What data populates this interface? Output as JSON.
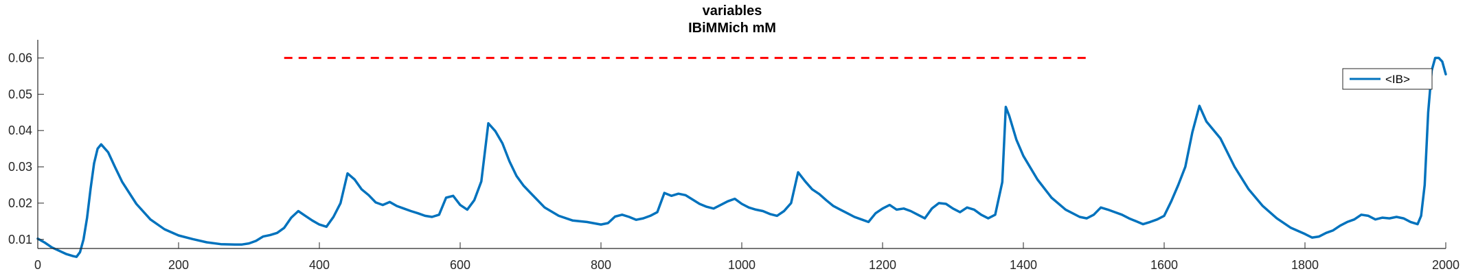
{
  "chart_data": {
    "type": "line",
    "title": "variables",
    "subtitle": "IBiMMich mM",
    "xlabel": "",
    "ylabel": "",
    "xlim": [
      0,
      2000
    ],
    "ylim": [
      0.0075,
      0.065
    ],
    "x_ticks": [
      0,
      200,
      400,
      600,
      800,
      1000,
      1200,
      1400,
      1600,
      1800,
      2000
    ],
    "y_ticks": [
      0.01,
      0.02,
      0.03,
      0.04,
      0.05,
      0.06
    ],
    "x_tick_labels": [
      "0",
      "200",
      "400",
      "600",
      "800",
      "1000",
      "1200",
      "1400",
      "1600",
      "1800",
      "2000"
    ],
    "y_tick_labels": [
      "0.01",
      "0.02",
      "0.03",
      "0.04",
      "0.05",
      "0.06"
    ],
    "grid": false,
    "legend_position": "top-right",
    "colors": {
      "series": "#0072BD",
      "reference": "#FF0000",
      "axis": "#262626"
    },
    "reference_line": {
      "y": 0.06,
      "x_start": 350,
      "x_end": 1490,
      "style": "dashed"
    },
    "series": [
      {
        "name": "<IB>",
        "x": [
          0,
          10,
          20,
          30,
          40,
          50,
          55,
          60,
          65,
          70,
          75,
          80,
          85,
          90,
          100,
          110,
          120,
          140,
          160,
          180,
          200,
          220,
          240,
          260,
          280,
          290,
          300,
          310,
          320,
          330,
          340,
          350,
          360,
          370,
          380,
          390,
          400,
          410,
          420,
          430,
          440,
          450,
          460,
          470,
          480,
          490,
          500,
          510,
          520,
          530,
          540,
          550,
          560,
          570,
          580,
          590,
          600,
          610,
          620,
          630,
          640,
          650,
          660,
          670,
          680,
          690,
          700,
          720,
          740,
          760,
          780,
          800,
          810,
          820,
          830,
          840,
          850,
          860,
          870,
          880,
          890,
          900,
          910,
          920,
          930,
          940,
          950,
          960,
          970,
          980,
          990,
          1000,
          1010,
          1020,
          1030,
          1040,
          1050,
          1060,
          1070,
          1080,
          1090,
          1100,
          1110,
          1120,
          1130,
          1140,
          1150,
          1160,
          1170,
          1180,
          1190,
          1200,
          1210,
          1220,
          1230,
          1240,
          1250,
          1260,
          1270,
          1280,
          1290,
          1300,
          1310,
          1320,
          1330,
          1340,
          1350,
          1360,
          1370,
          1375,
          1380,
          1390,
          1400,
          1420,
          1440,
          1460,
          1480,
          1490,
          1500,
          1510,
          1520,
          1530,
          1540,
          1550,
          1560,
          1570,
          1580,
          1590,
          1600,
          1610,
          1620,
          1630,
          1640,
          1650,
          1660,
          1680,
          1700,
          1720,
          1740,
          1760,
          1780,
          1800,
          1810,
          1820,
          1830,
          1840,
          1850,
          1860,
          1870,
          1880,
          1890,
          1900,
          1910,
          1920,
          1930,
          1940,
          1950,
          1960,
          1965,
          1970,
          1975,
          1980,
          1985,
          1990,
          1995,
          2000
        ],
        "values": [
          0.0102,
          0.0091,
          0.0078,
          0.0069,
          0.006,
          0.0054,
          0.0052,
          0.0065,
          0.01,
          0.016,
          0.024,
          0.031,
          0.035,
          0.0362,
          0.034,
          0.0298,
          0.0258,
          0.0198,
          0.0155,
          0.0128,
          0.0111,
          0.0101,
          0.0092,
          0.0087,
          0.0086,
          0.0086,
          0.0089,
          0.0096,
          0.0108,
          0.0112,
          0.0118,
          0.0132,
          0.016,
          0.0178,
          0.0165,
          0.0152,
          0.0141,
          0.0135,
          0.0162,
          0.02,
          0.0282,
          0.0265,
          0.0238,
          0.0222,
          0.0202,
          0.0195,
          0.0203,
          0.0192,
          0.0185,
          0.0178,
          0.0172,
          0.0165,
          0.0162,
          0.0168,
          0.0215,
          0.022,
          0.0195,
          0.0182,
          0.0208,
          0.026,
          0.042,
          0.0398,
          0.0365,
          0.0315,
          0.0275,
          0.0248,
          0.0228,
          0.0188,
          0.0165,
          0.0152,
          0.0148,
          0.0141,
          0.0145,
          0.0163,
          0.0168,
          0.0162,
          0.0154,
          0.0158,
          0.0165,
          0.0175,
          0.0228,
          0.022,
          0.0226,
          0.0222,
          0.021,
          0.0198,
          0.019,
          0.0185,
          0.0195,
          0.0205,
          0.0212,
          0.0198,
          0.0188,
          0.0182,
          0.0178,
          0.017,
          0.0165,
          0.0178,
          0.02,
          0.0285,
          0.026,
          0.0238,
          0.0225,
          0.0208,
          0.0192,
          0.0182,
          0.0172,
          0.0162,
          0.0155,
          0.0148,
          0.0172,
          0.0185,
          0.0195,
          0.0182,
          0.0185,
          0.0178,
          0.0168,
          0.0158,
          0.0185,
          0.02,
          0.0198,
          0.0185,
          0.0175,
          0.0188,
          0.0182,
          0.0168,
          0.0158,
          0.0168,
          0.0258,
          0.0465,
          0.044,
          0.0375,
          0.033,
          0.0265,
          0.0215,
          0.0182,
          0.0162,
          0.0158,
          0.0168,
          0.0188,
          0.0182,
          0.0175,
          0.0168,
          0.0158,
          0.015,
          0.0142,
          0.0148,
          0.0155,
          0.0165,
          0.0205,
          0.025,
          0.03,
          0.0395,
          0.0468,
          0.0425,
          0.0378,
          0.03,
          0.0238,
          0.0192,
          0.0158,
          0.0132,
          0.0115,
          0.0105,
          0.0108,
          0.0118,
          0.0125,
          0.0138,
          0.0148,
          0.0155,
          0.0168,
          0.0165,
          0.0155,
          0.016,
          0.0158,
          0.0162,
          0.0158,
          0.0148,
          0.0142,
          0.0165,
          0.025,
          0.045,
          0.0565,
          0.06,
          0.06,
          0.059,
          0.0555
        ]
      }
    ]
  }
}
